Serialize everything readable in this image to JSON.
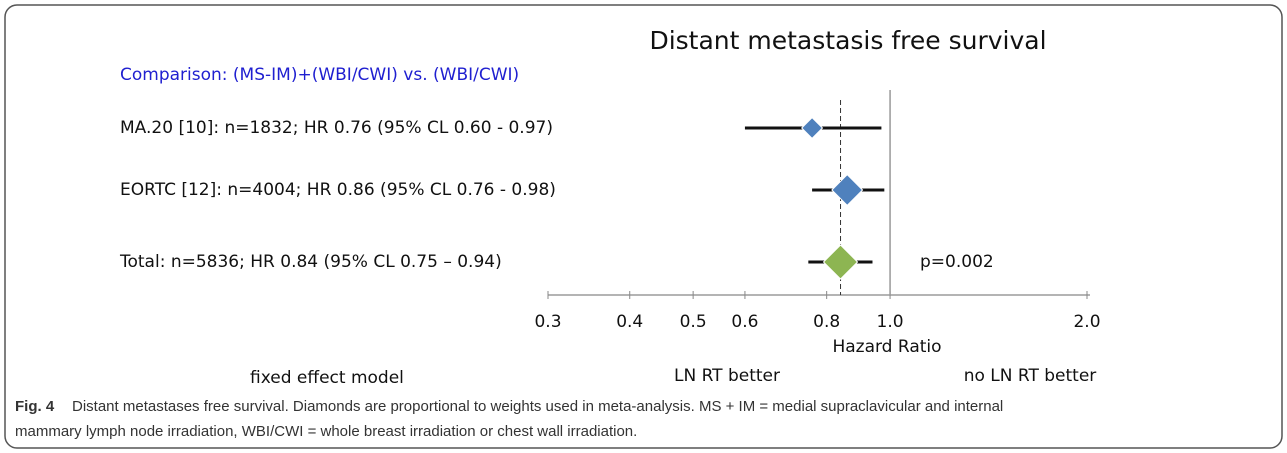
{
  "chart_data": {
    "type": "forest",
    "title": "Distant metastasis free survival",
    "subtitle": "Comparison: (MS-IM)+(WBI/CWI) vs. (WBI/CWI)",
    "categories": [
      "MA.20 [10]: n=1832; HR 0.76 (95% CL 0.60 - 0.97)",
      "EORTC [12]: n=4004; HR 0.86 (95% CL 0.76 - 0.98)",
      "Total: n=5836; HR 0.84 (95% CL 0.75 – 0.94)"
    ],
    "values": [
      0.76,
      0.86,
      0.84
    ],
    "lower": [
      0.6,
      0.76,
      0.75
    ],
    "upper": [
      0.97,
      0.98,
      0.94
    ],
    "weights": [
      24,
      76,
      100
    ],
    "colors": [
      "#4f81bd",
      "#4f81bd",
      "#8db552"
    ],
    "reference": 1,
    "xscale": "log",
    "xlim": [
      0.3,
      2.0
    ],
    "xticks": [
      0.3,
      0.4,
      0.5,
      0.6,
      0.8,
      {
        "value": 1,
        "label": "1.0"
      },
      {
        "value": 2,
        "label": "2.0"
      }
    ],
    "xlabel": "Hazard Ratio",
    "p_value": "p=0.002",
    "model": "fixed effect model",
    "left_label": "LN RT better",
    "right_label": "no LN RT better",
    "caption_label": "Fig. 4",
    "caption": [
      "Distant metastases free survival. Diamonds are proportional to weights used in meta-analysis. MS + IM = medial supraclavicular and internal",
      "mammary lymph node irradiation, WBI/CWI = whole breast irradiation or chest wall irradiation."
    ]
  }
}
